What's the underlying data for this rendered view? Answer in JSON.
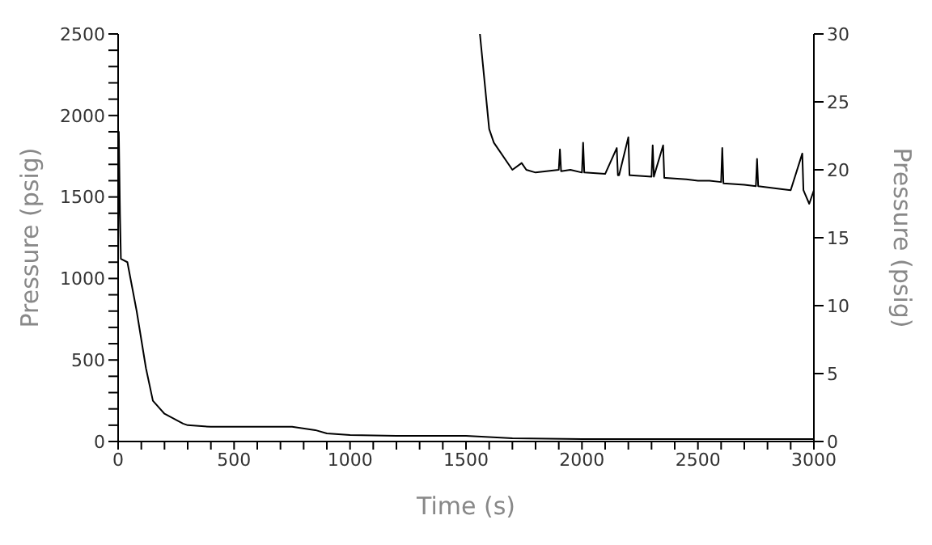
{
  "chart_data": {
    "type": "line",
    "xlabel": "Time   (s)",
    "ylabel": "Pressure  (psig)",
    "y2label": "Pressure  (psig)",
    "xlim": [
      0,
      3000
    ],
    "xticks": [
      0,
      {
        "value": 100,
        "label": null
      },
      {
        "value": 200,
        "label": null
      },
      {
        "value": 300,
        "label": null
      },
      {
        "value": 400,
        "label": null
      },
      500,
      {
        "value": 600,
        "label": null
      },
      {
        "value": 700,
        "label": null
      },
      {
        "value": 800,
        "label": null
      },
      {
        "value": 900,
        "label": null
      },
      1000,
      {
        "value": 1100,
        "label": null
      },
      {
        "value": 1200,
        "label": null
      },
      {
        "value": 1300,
        "label": null
      },
      {
        "value": 1400,
        "label": null
      },
      1500,
      {
        "value": 1600,
        "label": null
      },
      {
        "value": 1700,
        "label": null
      },
      {
        "value": 1800,
        "label": null
      },
      {
        "value": 1900,
        "label": null
      },
      2000,
      {
        "value": 2100,
        "label": null
      },
      {
        "value": 2200,
        "label": null
      },
      {
        "value": 2300,
        "label": null
      },
      {
        "value": 2400,
        "label": null
      },
      2500,
      {
        "value": 2600,
        "label": null
      },
      {
        "value": 2700,
        "label": null
      },
      {
        "value": 2800,
        "label": null
      },
      {
        "value": 2900,
        "label": null
      },
      3000
    ],
    "ylim": [
      0,
      2500
    ],
    "yticks": [
      0,
      {
        "value": 100,
        "label": null
      },
      {
        "value": 200,
        "label": null
      },
      {
        "value": 300,
        "label": null
      },
      {
        "value": 400,
        "label": null
      },
      500,
      {
        "value": 600,
        "label": null
      },
      {
        "value": 700,
        "label": null
      },
      {
        "value": 800,
        "label": null
      },
      {
        "value": 900,
        "label": null
      },
      1000,
      {
        "value": 1100,
        "label": null
      },
      {
        "value": 1200,
        "label": null
      },
      {
        "value": 1300,
        "label": null
      },
      {
        "value": 1400,
        "label": null
      },
      1500,
      {
        "value": 1600,
        "label": null
      },
      {
        "value": 1700,
        "label": null
      },
      {
        "value": 1800,
        "label": null
      },
      {
        "value": 1900,
        "label": null
      },
      2000,
      {
        "value": 2100,
        "label": null
      },
      {
        "value": 2200,
        "label": null
      },
      {
        "value": 2300,
        "label": null
      },
      {
        "value": 2400,
        "label": null
      },
      2500
    ],
    "y2lim": [
      0,
      30
    ],
    "y2ticks": [
      0,
      5,
      10,
      15,
      20,
      25,
      30
    ],
    "marker": "none",
    "line_style": "solid",
    "series": [
      {
        "color": "#000000",
        "x": [
          0,
          3,
          8,
          12,
          40,
          80,
          120,
          150,
          200,
          280,
          300,
          400,
          600,
          750,
          850,
          900,
          1000,
          1200,
          1500,
          1700,
          2000,
          3000
        ],
        "values": [
          1150,
          1900,
          1400,
          1120,
          1100,
          800,
          450,
          250,
          170,
          110,
          100,
          90,
          90,
          90,
          70,
          50,
          40,
          35,
          35,
          20,
          15,
          15
        ]
      },
      {
        "color": "#000000",
        "axis": "y2",
        "x": [
          1560,
          1600,
          1620,
          1700,
          1740,
          1760,
          1800,
          1900,
          1905,
          1910,
          1950,
          2000,
          2005,
          2010,
          2100,
          2150,
          2155,
          2160,
          2200,
          2205,
          2210,
          2300,
          2305,
          2310,
          2350,
          2355,
          2360,
          2450,
          2500,
          2550,
          2600,
          2605,
          2610,
          2700,
          2750,
          2755,
          2760,
          2850,
          2900,
          2950,
          2955,
          2960,
          2980,
          3000
        ],
        "values": [
          30,
          23,
          22,
          20,
          20.5,
          20,
          19.8,
          20,
          21.5,
          19.9,
          20,
          19.8,
          22,
          19.8,
          19.7,
          21.6,
          19.6,
          19.6,
          22.4,
          19.6,
          19.6,
          19.5,
          21.8,
          19.5,
          21.8,
          19.4,
          19.4,
          19.3,
          19.2,
          19.2,
          19.1,
          21.6,
          19,
          18.9,
          18.8,
          20.8,
          18.8,
          18.6,
          18.5,
          21.2,
          18.5,
          18.3,
          17.5,
          18.5
        ]
      }
    ]
  }
}
